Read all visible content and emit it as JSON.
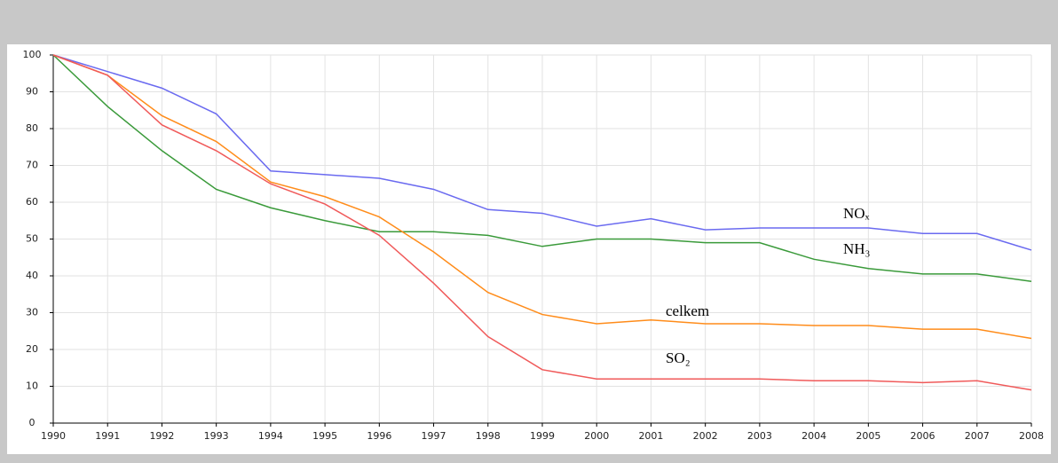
{
  "chart_data": {
    "type": "line",
    "x": [
      1990,
      1991,
      1992,
      1993,
      1994,
      1995,
      1996,
      1997,
      1998,
      1999,
      2000,
      2001,
      2002,
      2003,
      2004,
      2005,
      2006,
      2007,
      2008
    ],
    "series": [
      {
        "name": "NOₓ",
        "color": "#6a6af0",
        "values": [
          100,
          95.5,
          91,
          84,
          68.5,
          67.5,
          66.5,
          63.5,
          58,
          57,
          53.5,
          55.5,
          52.5,
          53,
          53,
          53,
          51.5,
          51.5,
          47
        ]
      },
      {
        "name": "NH₃",
        "color": "#3a9a3a",
        "values": [
          100,
          86,
          74,
          63.5,
          58.5,
          55,
          52,
          52,
          51,
          48,
          50,
          50,
          49,
          49,
          44.5,
          42,
          40.5,
          40.5,
          38.5
        ]
      },
      {
        "name": "celkem",
        "color": "#ff8c1a",
        "values": [
          100,
          94.5,
          83.5,
          76.5,
          65.5,
          61.5,
          56,
          46.5,
          35.5,
          29.5,
          27,
          28,
          27,
          27,
          26.5,
          26.5,
          25.5,
          25.5,
          23
        ]
      },
      {
        "name": "SO₂",
        "color": "#f05a5a",
        "values": [
          100,
          94.5,
          81,
          74,
          65,
          59.5,
          51,
          38,
          23.5,
          14.5,
          12,
          12,
          12,
          12,
          11.5,
          11.5,
          11,
          11.5,
          9
        ]
      }
    ],
    "xlim": [
      1990,
      2008
    ],
    "xticks": [
      1990,
      1991,
      1992,
      1993,
      1994,
      1995,
      1996,
      1997,
      1998,
      1999,
      2000,
      2001,
      2002,
      2003,
      2004,
      2005,
      2006,
      2007,
      2008
    ],
    "ylim": [
      0,
      100
    ],
    "yticks": [
      0,
      10,
      20,
      30,
      40,
      50,
      60,
      70,
      80,
      90,
      100
    ],
    "grid": true
  }
}
